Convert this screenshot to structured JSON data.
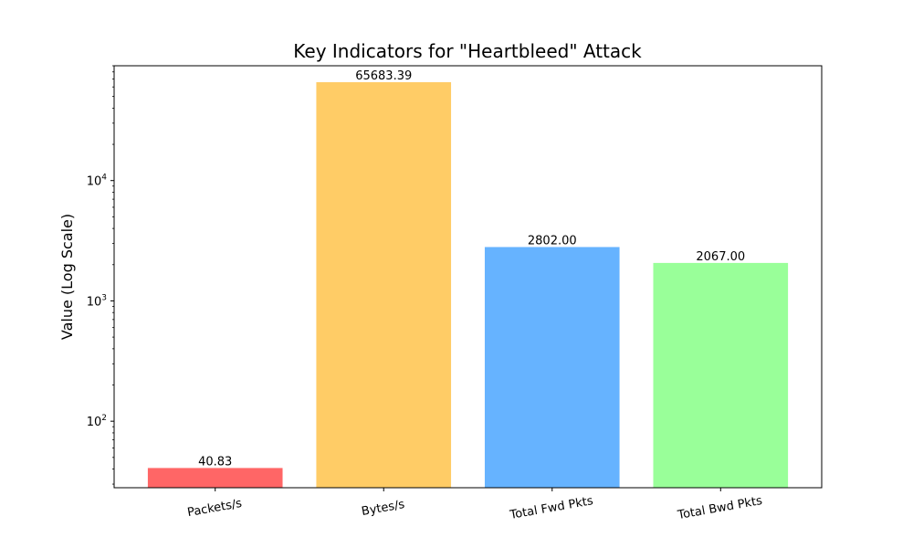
{
  "chart_data": {
    "type": "bar",
    "title": "Key Indicators for \"Heartbleed\" Attack",
    "xlabel": "",
    "ylabel": "Value (Log Scale)",
    "yscale": "log",
    "ylim": [
      28,
      90000
    ],
    "categories": [
      "Packets/s",
      "Bytes/s",
      "Total Fwd Pkts",
      "Total Bwd Pkts"
    ],
    "values": [
      40.83,
      65683.39,
      2802.0,
      2067.0
    ],
    "value_labels": [
      "40.83",
      "65683.39",
      "2802.00",
      "2067.00"
    ],
    "colors": [
      "#ff6666",
      "#ffcc66",
      "#66b3ff",
      "#99ff99"
    ],
    "y_major_ticks": [
      {
        "value": 100,
        "base": "10",
        "exp": "2"
      },
      {
        "value": 1000,
        "base": "10",
        "exp": "3"
      },
      {
        "value": 10000,
        "base": "10",
        "exp": "4"
      }
    ],
    "grid": false,
    "legend": "none"
  }
}
